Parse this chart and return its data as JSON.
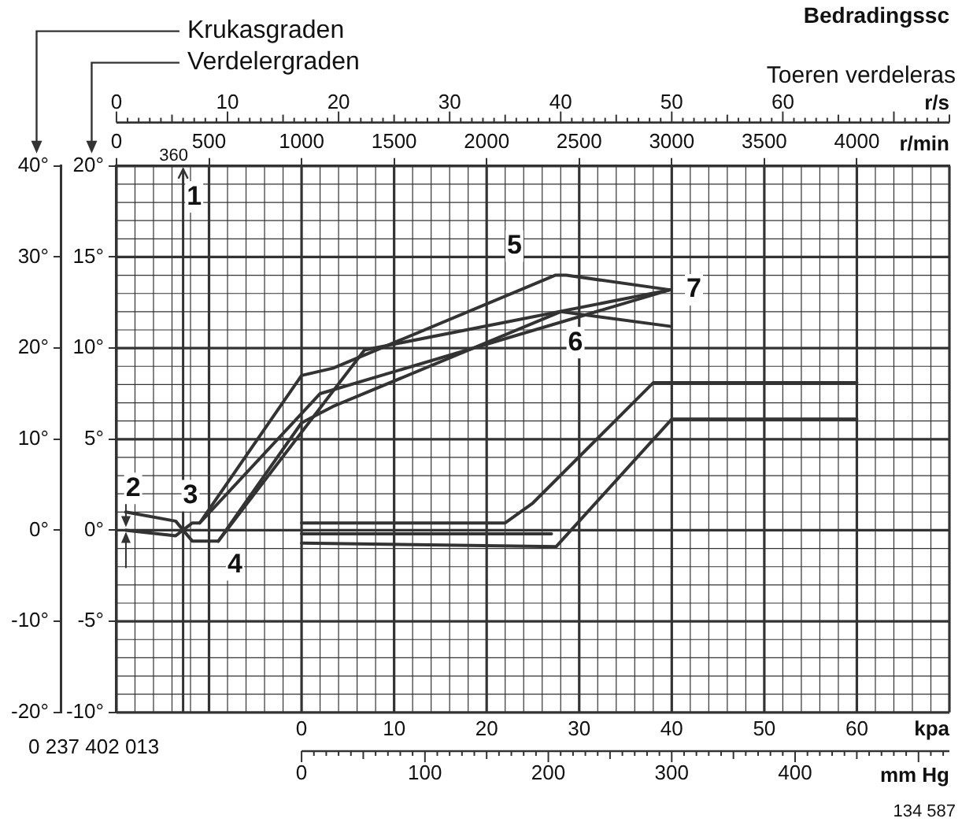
{
  "chart_data": {
    "type": "line",
    "title": "Bedradingssc",
    "ylabel": "Verdelergraden",
    "xlabel": "kpa",
    "x2label": "r/min",
    "xlim": [
      -20,
      70
    ],
    "xticks": [
      0,
      10,
      20,
      30,
      40,
      50,
      60
    ],
    "x2lim": [
      0,
      4500
    ],
    "x2ticks": [
      0,
      500,
      1000,
      1500,
      2000,
      2500,
      3000,
      3500,
      4000
    ],
    "ylim": [
      -10,
      20
    ],
    "yticks": [
      {
        "value": -10,
        "label": "-10°"
      },
      {
        "value": -5,
        "label": "-5°"
      },
      {
        "value": 0,
        "label": "0°"
      },
      {
        "value": 5,
        "label": "5°"
      },
      {
        "value": 10,
        "label": "10°"
      },
      {
        "value": 15,
        "label": "15°"
      },
      {
        "value": 20,
        "label": "20°"
      }
    ],
    "y2lim": [
      -20,
      40
    ],
    "y2ticks": [
      {
        "value": -20,
        "label": "-20°"
      },
      {
        "value": -10,
        "label": "-10°"
      },
      {
        "value": 0,
        "label": "0°"
      },
      {
        "value": 10,
        "label": "10°"
      },
      {
        "value": 20,
        "label": "20°"
      },
      {
        "value": 30,
        "label": "30°"
      },
      {
        "value": 40,
        "label": "40°"
      }
    ],
    "grid": true,
    "legend": false,
    "marker": "none",
    "line_style": "solid",
    "series": [
      {
        "color": "#333333",
        "axis": "x2",
        "x": [
          50,
          320,
          410,
          450,
          1000,
          1170,
          2370,
          2430,
          2990
        ],
        "values": [
          0,
          -0.3,
          0.4,
          0.4,
          8.5,
          8.9,
          14,
          14,
          13.2
        ]
      },
      {
        "color": "#333333",
        "axis": "x2",
        "x": [
          50,
          320,
          410,
          550,
          1000,
          1170,
          2400,
          2990
        ],
        "values": [
          1,
          0.5,
          -0.6,
          -0.6,
          5.9,
          6.8,
          12,
          11.2
        ]
      },
      {
        "color": "#333333",
        "axis": "x2",
        "x": [
          550,
          1340,
          2990
        ],
        "values": [
          -0.6,
          9.9,
          13.2
        ]
      },
      {
        "color": "#333333",
        "axis": "x2",
        "x": [
          450,
          1100,
          2990
        ],
        "values": [
          0.4,
          7.5,
          13.2
        ]
      },
      {
        "color": "#333333",
        "x": [
          0,
          22,
          25,
          38,
          60
        ],
        "values": [
          0.4,
          0.4,
          1.5,
          8.1,
          8.1
        ]
      },
      {
        "color": "#333333",
        "x": [
          0,
          27
        ],
        "values": [
          -0.2,
          -0.2
        ]
      },
      {
        "color": "#333333",
        "x": [
          0,
          27.5,
          40,
          60
        ],
        "values": [
          -0.7,
          -0.9,
          6.1,
          6.1
        ]
      }
    ],
    "ref_lines": [
      {
        "axis": "x2",
        "value": 360,
        "label": "360",
        "color": "#333333"
      }
    ],
    "annotations": [
      "Toeren verdeleras",
      "0 237 402 013",
      "134 587",
      "r/s",
      "mm Hg",
      "1",
      "2",
      "3",
      "4",
      "5",
      "6",
      "7",
      "0",
      "10",
      "20",
      "30",
      "40",
      "50",
      "60",
      "0",
      "100",
      "200",
      "300",
      "400",
      "Krukasgraden"
    ]
  }
}
